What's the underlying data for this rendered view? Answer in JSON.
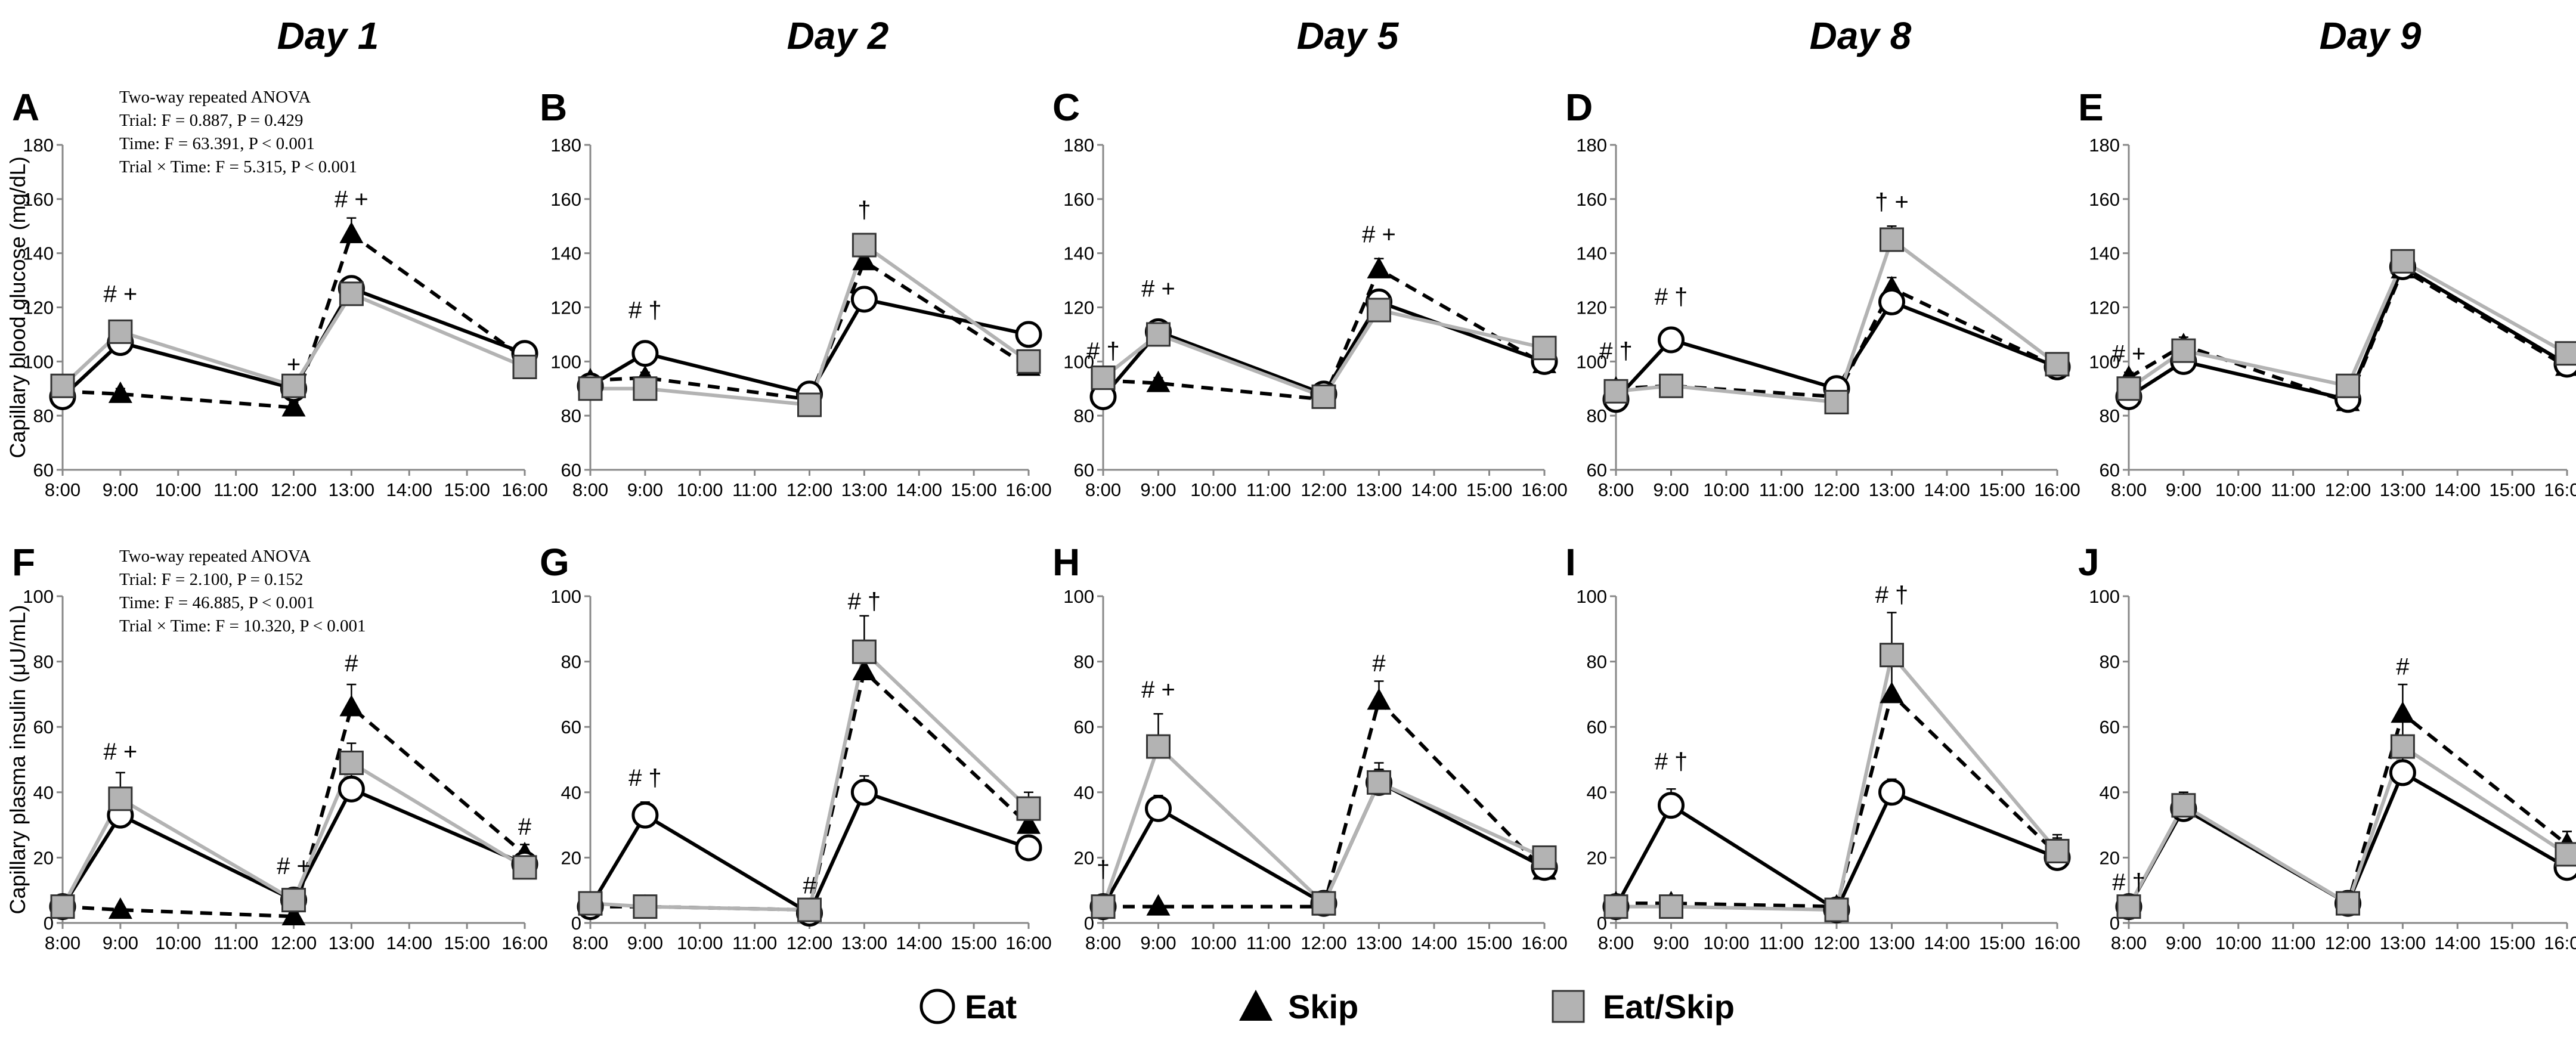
{
  "days": [
    "Day 1",
    "Day 2",
    "Day 5",
    "Day 8",
    "Day 9"
  ],
  "legend": [
    {
      "key": "eat",
      "label": "Eat"
    },
    {
      "key": "skip",
      "label": "Skip"
    },
    {
      "key": "eatskip",
      "label": "Eat/Skip"
    }
  ],
  "colors": {
    "eat": "#000000",
    "skip": "#000000",
    "eatskip": "#b3b3b3",
    "marker_fill": "#b3b3b3",
    "axis": "#888888"
  },
  "chart_data": [
    {
      "type": "line",
      "row": "glucose",
      "title": "Day 1",
      "panel": "A",
      "ylabel": "Capillary blood glucose (mg/dL)",
      "ylim": [
        60,
        180
      ],
      "yticks": [
        60,
        80,
        100,
        120,
        140,
        160,
        180
      ],
      "xticks": [
        "8:00",
        "9:00",
        "10:00",
        "11:00",
        "12:00",
        "13:00",
        "14:00",
        "15:00",
        "16:00"
      ],
      "x": [
        "8:00",
        "9:00",
        "12:00",
        "13:00",
        "16:00"
      ],
      "series": [
        {
          "name": "Eat",
          "values": [
            87,
            107,
            90,
            127,
            103
          ],
          "err": [
            2,
            3,
            2,
            3,
            2
          ]
        },
        {
          "name": "Skip",
          "values": [
            89,
            88,
            83,
            147,
            101
          ],
          "err": [
            2,
            2,
            2,
            6,
            2
          ]
        },
        {
          "name": "Eat/Skip",
          "values": [
            91,
            111,
            91,
            125,
            98
          ],
          "err": [
            2,
            3,
            2,
            4,
            2
          ]
        }
      ],
      "stats": [
        "Two-way repeated ANOVA",
        "Trial: F = 0.887, P = 0.429",
        "Time: F = 63.391, P < 0.001",
        "Trial × Time: F = 5.315, P < 0.001"
      ],
      "annotations": [
        {
          "x": "9:00",
          "y": 122,
          "text": "# +"
        },
        {
          "x": "12:00",
          "y": 96,
          "text": "+"
        },
        {
          "x": "13:00",
          "y": 157,
          "text": "# +"
        }
      ]
    },
    {
      "type": "line",
      "row": "glucose",
      "title": "Day 2",
      "panel": "B",
      "ylim": [
        60,
        180
      ],
      "yticks": [
        60,
        80,
        100,
        120,
        140,
        160,
        180
      ],
      "xticks": [
        "8:00",
        "9:00",
        "10:00",
        "11:00",
        "12:00",
        "13:00",
        "14:00",
        "15:00",
        "16:00"
      ],
      "x": [
        "8:00",
        "9:00",
        "12:00",
        "13:00",
        "16:00"
      ],
      "series": [
        {
          "name": "Eat",
          "values": [
            91,
            103,
            88,
            123,
            110
          ],
          "err": [
            2,
            3,
            2,
            3,
            3
          ]
        },
        {
          "name": "Skip",
          "values": [
            93,
            94,
            86,
            137,
            98
          ],
          "err": [
            2,
            2,
            2,
            4,
            2
          ]
        },
        {
          "name": "Eat/Skip",
          "values": [
            90,
            90,
            84,
            143,
            100
          ],
          "err": [
            2,
            2,
            2,
            4,
            2
          ]
        }
      ],
      "annotations": [
        {
          "x": "9:00",
          "y": 116,
          "text": "# †"
        },
        {
          "x": "13:00",
          "y": 153,
          "text": "†"
        }
      ]
    },
    {
      "type": "line",
      "row": "glucose",
      "title": "Day 5",
      "panel": "C",
      "ylim": [
        60,
        180
      ],
      "yticks": [
        60,
        80,
        100,
        120,
        140,
        160,
        180
      ],
      "xticks": [
        "8:00",
        "9:00",
        "10:00",
        "11:00",
        "12:00",
        "13:00",
        "14:00",
        "15:00",
        "16:00"
      ],
      "x": [
        "8:00",
        "9:00",
        "12:00",
        "13:00",
        "16:00"
      ],
      "series": [
        {
          "name": "Eat",
          "values": [
            87,
            111,
            88,
            122,
            100
          ],
          "err": [
            2,
            3,
            2,
            3,
            2
          ]
        },
        {
          "name": "Skip",
          "values": [
            93,
            92,
            86,
            134,
            99
          ],
          "err": [
            2,
            2,
            2,
            4,
            2
          ]
        },
        {
          "name": "Eat/Skip",
          "values": [
            94,
            110,
            87,
            119,
            105
          ],
          "err": [
            2,
            3,
            2,
            3,
            2
          ]
        }
      ],
      "annotations": [
        {
          "x": "8:00",
          "y": 101,
          "text": "# †"
        },
        {
          "x": "9:00",
          "y": 124,
          "text": "# +"
        },
        {
          "x": "13:00",
          "y": 144,
          "text": "# +"
        }
      ]
    },
    {
      "type": "line",
      "row": "glucose",
      "title": "Day 8",
      "panel": "D",
      "ylim": [
        60,
        180
      ],
      "yticks": [
        60,
        80,
        100,
        120,
        140,
        160,
        180
      ],
      "xticks": [
        "8:00",
        "9:00",
        "10:00",
        "11:00",
        "12:00",
        "13:00",
        "14:00",
        "15:00",
        "16:00"
      ],
      "x": [
        "8:00",
        "9:00",
        "12:00",
        "13:00",
        "16:00"
      ],
      "series": [
        {
          "name": "Eat",
          "values": [
            86,
            108,
            90,
            122,
            98
          ],
          "err": [
            2,
            3,
            2,
            3,
            2
          ]
        },
        {
          "name": "Skip",
          "values": [
            90,
            91,
            87,
            127,
            98
          ],
          "err": [
            2,
            2,
            2,
            4,
            2
          ]
        },
        {
          "name": "Eat/Skip",
          "values": [
            89,
            91,
            85,
            145,
            99
          ],
          "err": [
            2,
            2,
            2,
            5,
            2
          ]
        }
      ],
      "annotations": [
        {
          "x": "8:00",
          "y": 101,
          "text": "# †"
        },
        {
          "x": "9:00",
          "y": 121,
          "text": "# †"
        },
        {
          "x": "13:00",
          "y": 156,
          "text": "† +"
        }
      ]
    },
    {
      "type": "line",
      "row": "glucose",
      "title": "Day 9",
      "panel": "E",
      "ylim": [
        60,
        180
      ],
      "yticks": [
        60,
        80,
        100,
        120,
        140,
        160,
        180
      ],
      "xticks": [
        "8:00",
        "9:00",
        "10:00",
        "11:00",
        "12:00",
        "13:00",
        "14:00",
        "15:00",
        "16:00"
      ],
      "x": [
        "8:00",
        "9:00",
        "12:00",
        "13:00",
        "16:00"
      ],
      "series": [
        {
          "name": "Eat",
          "values": [
            87,
            100,
            86,
            135,
            99
          ],
          "err": [
            2,
            3,
            2,
            3,
            2
          ]
        },
        {
          "name": "Skip",
          "values": [
            94,
            106,
            85,
            134,
            98
          ],
          "err": [
            2,
            3,
            2,
            3,
            2
          ]
        },
        {
          "name": "Eat/Skip",
          "values": [
            90,
            104,
            91,
            137,
            103
          ],
          "err": [
            2,
            3,
            2,
            3,
            2
          ]
        }
      ],
      "annotations": [
        {
          "x": "8:00",
          "y": 100,
          "text": "# +"
        }
      ]
    },
    {
      "type": "line",
      "row": "insulin",
      "panel": "F",
      "ylabel": "Capillary plasma insulin (μU/mL)",
      "ylim": [
        0,
        100
      ],
      "yticks": [
        0,
        20,
        40,
        60,
        80,
        100
      ],
      "xticks": [
        "8:00",
        "9:00",
        "10:00",
        "11:00",
        "12:00",
        "13:00",
        "14:00",
        "15:00",
        "16:00"
      ],
      "x": [
        "8:00",
        "9:00",
        "12:00",
        "13:00",
        "16:00"
      ],
      "series": [
        {
          "name": "Eat",
          "values": [
            5,
            33,
            7,
            41,
            18
          ],
          "err": [
            1,
            5,
            2,
            7,
            3
          ]
        },
        {
          "name": "Skip",
          "values": [
            5,
            4,
            2,
            66,
            21
          ],
          "err": [
            1,
            1,
            1,
            7,
            3
          ]
        },
        {
          "name": "Eat/Skip",
          "values": [
            5,
            38,
            7,
            49,
            17
          ],
          "err": [
            1,
            8,
            2,
            6,
            3
          ]
        }
      ],
      "stats": [
        "Two-way repeated ANOVA",
        "Trial: F = 2.100, P = 0.152",
        "Time: F = 46.885, P < 0.001",
        "Trial × Time: F = 10.320, P < 0.001"
      ],
      "annotations": [
        {
          "x": "9:00",
          "y": 50,
          "text": "# +"
        },
        {
          "x": "12:00",
          "y": 15,
          "text": "# +"
        },
        {
          "x": "13:00",
          "y": 77,
          "text": "#"
        },
        {
          "x": "16:00",
          "y": 27,
          "text": "#"
        }
      ]
    },
    {
      "type": "line",
      "row": "insulin",
      "panel": "G",
      "ylim": [
        0,
        100
      ],
      "yticks": [
        0,
        20,
        40,
        60,
        80,
        100
      ],
      "xticks": [
        "8:00",
        "9:00",
        "10:00",
        "11:00",
        "12:00",
        "13:00",
        "14:00",
        "15:00",
        "16:00"
      ],
      "x": [
        "8:00",
        "9:00",
        "12:00",
        "13:00",
        "16:00"
      ],
      "series": [
        {
          "name": "Eat",
          "values": [
            5,
            33,
            3,
            40,
            23
          ],
          "err": [
            1,
            4,
            1,
            5,
            3
          ]
        },
        {
          "name": "Skip",
          "values": [
            5,
            5,
            4,
            77,
            30
          ],
          "err": [
            1,
            1,
            1,
            8,
            5
          ]
        },
        {
          "name": "Eat/Skip",
          "values": [
            6,
            5,
            4,
            83,
            35
          ],
          "err": [
            1,
            1,
            1,
            11,
            5
          ]
        }
      ],
      "annotations": [
        {
          "x": "9:00",
          "y": 42,
          "text": "# †"
        },
        {
          "x": "12:00",
          "y": 9,
          "text": "#"
        },
        {
          "x": "13:00",
          "y": 96,
          "text": "# †"
        }
      ]
    },
    {
      "type": "line",
      "row": "insulin",
      "panel": "H",
      "ylim": [
        0,
        100
      ],
      "yticks": [
        0,
        20,
        40,
        60,
        80,
        100
      ],
      "xticks": [
        "8:00",
        "9:00",
        "10:00",
        "11:00",
        "12:00",
        "13:00",
        "14:00",
        "15:00",
        "16:00"
      ],
      "x": [
        "8:00",
        "9:00",
        "12:00",
        "13:00",
        "16:00"
      ],
      "series": [
        {
          "name": "Eat",
          "values": [
            5,
            35,
            6,
            43,
            17
          ],
          "err": [
            1,
            4,
            1,
            4,
            3
          ]
        },
        {
          "name": "Skip",
          "values": [
            5,
            5,
            5,
            68,
            16
          ],
          "err": [
            1,
            1,
            1,
            6,
            3
          ]
        },
        {
          "name": "Eat/Skip",
          "values": [
            5,
            54,
            6,
            43,
            20
          ],
          "err": [
            1,
            10,
            1,
            6,
            3
          ]
        }
      ],
      "annotations": [
        {
          "x": "8:00",
          "y": 14,
          "text": "†"
        },
        {
          "x": "9:00",
          "y": 69,
          "text": "# +"
        },
        {
          "x": "13:00",
          "y": 77,
          "text": "#"
        }
      ]
    },
    {
      "type": "line",
      "row": "insulin",
      "panel": "I",
      "ylim": [
        0,
        100
      ],
      "yticks": [
        0,
        20,
        40,
        60,
        80,
        100
      ],
      "xticks": [
        "8:00",
        "9:00",
        "10:00",
        "11:00",
        "12:00",
        "13:00",
        "14:00",
        "15:00",
        "16:00"
      ],
      "x": [
        "8:00",
        "9:00",
        "12:00",
        "13:00",
        "16:00"
      ],
      "series": [
        {
          "name": "Eat",
          "values": [
            5,
            36,
            4,
            40,
            20
          ],
          "err": [
            1,
            5,
            1,
            4,
            5
          ]
        },
        {
          "name": "Skip",
          "values": [
            6,
            6,
            5,
            70,
            21
          ],
          "err": [
            1,
            1,
            1,
            10,
            5
          ]
        },
        {
          "name": "Eat/Skip",
          "values": [
            5,
            5,
            4,
            82,
            22
          ],
          "err": [
            1,
            1,
            1,
            13,
            5
          ]
        }
      ],
      "annotations": [
        {
          "x": "9:00",
          "y": 47,
          "text": "# †"
        },
        {
          "x": "13:00",
          "y": 98,
          "text": "# †"
        }
      ]
    },
    {
      "type": "line",
      "row": "insulin",
      "panel": "J",
      "ylim": [
        0,
        100
      ],
      "yticks": [
        0,
        20,
        40,
        60,
        80,
        100
      ],
      "xticks": [
        "8:00",
        "9:00",
        "10:00",
        "11:00",
        "12:00",
        "13:00",
        "14:00",
        "15:00",
        "16:00"
      ],
      "x": [
        "8:00",
        "9:00",
        "12:00",
        "13:00",
        "16:00"
      ],
      "series": [
        {
          "name": "Eat",
          "values": [
            5,
            35,
            6,
            46,
            17
          ],
          "err": [
            1,
            4,
            1,
            5,
            4
          ]
        },
        {
          "name": "Skip",
          "values": [
            5,
            35,
            6,
            64,
            24
          ],
          "err": [
            1,
            4,
            1,
            9,
            4
          ]
        },
        {
          "name": "Eat/Skip",
          "values": [
            5,
            36,
            6,
            54,
            21
          ],
          "err": [
            1,
            4,
            1,
            8,
            7
          ]
        }
      ],
      "annotations": [
        {
          "x": "8:00",
          "y": 10,
          "text": "# †"
        },
        {
          "x": "13:00",
          "y": 76,
          "text": "#"
        }
      ]
    }
  ]
}
